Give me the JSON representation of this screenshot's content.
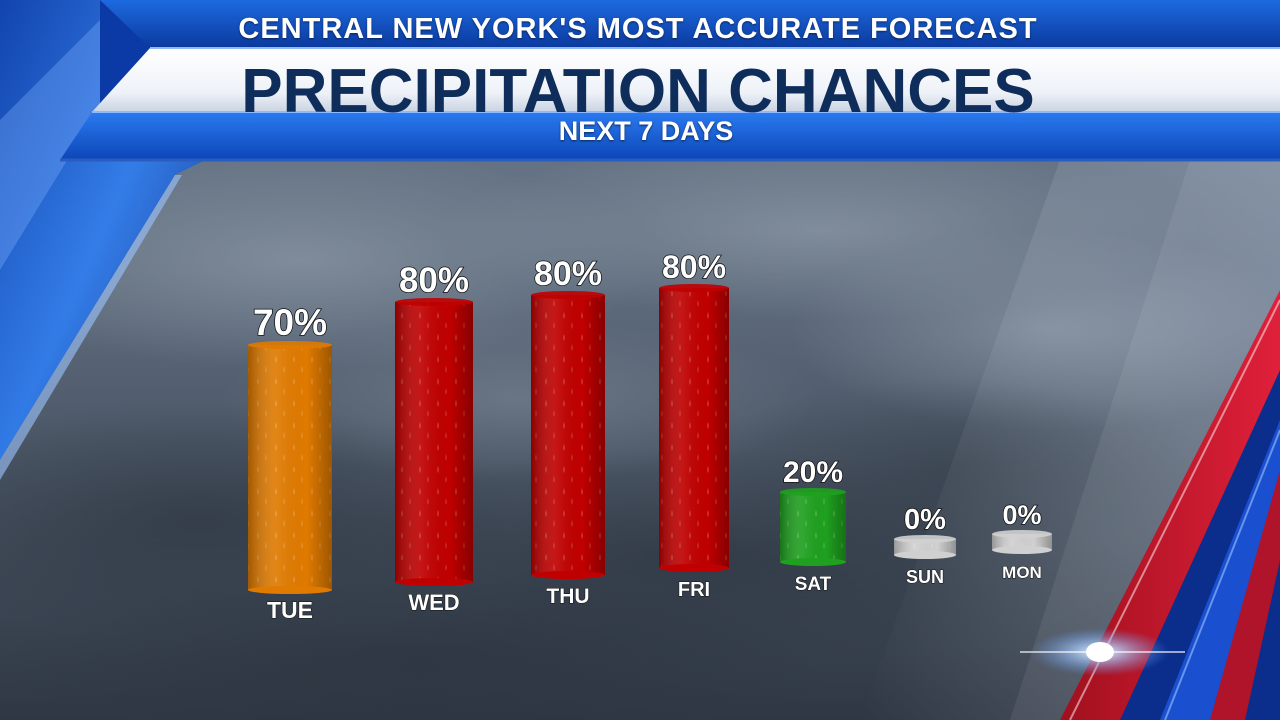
{
  "header": {
    "top_title": "CENTRAL NEW YORK'S MOST ACCURATE FORECAST",
    "main_title": "PRECIPITATION CHANCES",
    "subtitle": "NEXT 7 DAYS"
  },
  "colors": {
    "orange": "#e07a00",
    "red": "#c00000",
    "green": "#1fa01f",
    "gray": "#d0d0d0",
    "banner_blue": "#1457c8",
    "title_navy": "#0f2d5a"
  },
  "chart_data": {
    "type": "bar",
    "title": "PRECIPITATION CHANCES",
    "subtitle": "NEXT 7 DAYS",
    "categories": [
      "TUE",
      "WED",
      "THU",
      "FRI",
      "SAT",
      "SUN",
      "MON"
    ],
    "values": [
      70,
      80,
      80,
      80,
      20,
      0,
      0
    ],
    "data_labels": [
      "70%",
      "80%",
      "80%",
      "80%",
      "20%",
      "0%",
      "0%"
    ],
    "unit": "%",
    "bar_colors": [
      "#e07a00",
      "#c00000",
      "#c00000",
      "#c00000",
      "#1fa01f",
      "#d0d0d0",
      "#d0d0d0"
    ],
    "ylim": [
      0,
      100
    ],
    "grid": false,
    "legend": "none"
  }
}
